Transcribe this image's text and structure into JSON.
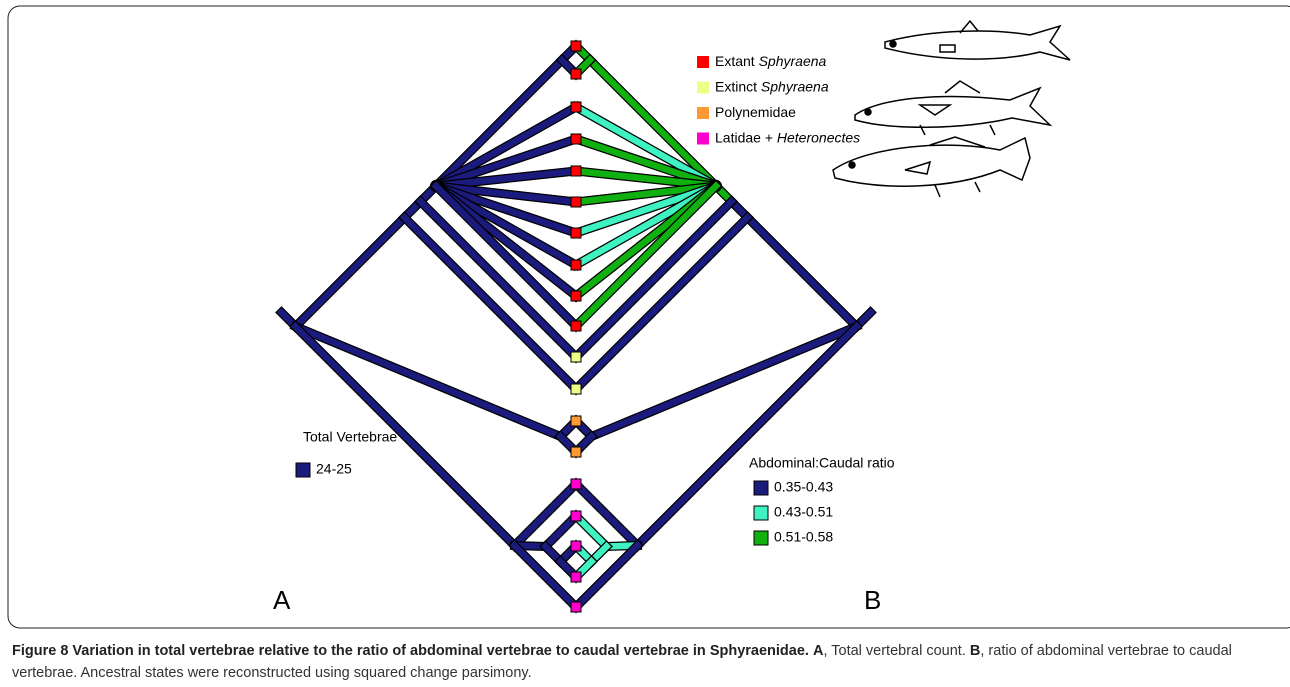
{
  "taxa_legend": [
    {
      "text": "Extant",
      "italic": "Sphyraena",
      "color": "#ff0000"
    },
    {
      "text": "Extinct",
      "italic": "Sphyraena",
      "color": "#eeff88"
    },
    {
      "text": "Polynemidae",
      "color": "#ff9933"
    },
    {
      "text": "Latidae +",
      "italic": "Heteronectes",
      "color": "#ff00cc"
    }
  ],
  "left_legend": {
    "title": "Total Vertebrae",
    "items": [
      {
        "label": "24-25",
        "color": "#1b1b7e"
      }
    ]
  },
  "right_legend": {
    "title": "Abdominal:Caudal ratio",
    "items": [
      {
        "label": "0.35-0.43",
        "color": "#1b1b7e"
      },
      {
        "label": "0.43-0.51",
        "color": "#3ef2c2"
      },
      {
        "label": "0.51-0.58",
        "color": "#10b010"
      }
    ]
  },
  "panel_labels": [
    "A",
    "B"
  ],
  "caption": {
    "title": "Figure 8 Variation in total vertebrae relative to the ratio of abdominal vertebrae to caudal vertebrae in Sphyraenidae.",
    "label_a": "A",
    "text_a": ", Total vertebral count.",
    "label_b": "B",
    "text_b": ", ratio of abdominal vertebrae to caudal vertebrae. Ancestral states were reconstructed using squared change parsimony."
  }
}
